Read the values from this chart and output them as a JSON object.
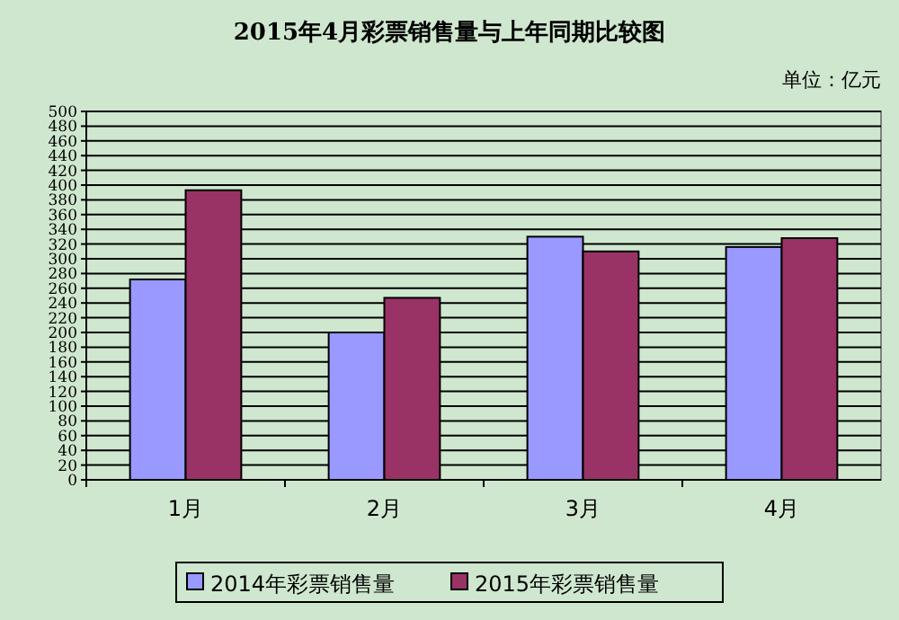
{
  "chart_data": {
    "type": "bar",
    "title": "2015年4月彩票销售量与上年同期比较图",
    "annotations": [
      "单位：亿元"
    ],
    "categories": [
      "1月",
      "2月",
      "3月",
      "4月"
    ],
    "series": [
      {
        "name": "2014年彩票销售量",
        "color": "#9999ff",
        "values": [
          272,
          200,
          330,
          316
        ]
      },
      {
        "name": "2015年彩票销售量",
        "color": "#993366",
        "values": [
          393,
          247,
          310,
          328
        ]
      }
    ],
    "ylim": [
      0,
      500
    ],
    "yticks": [
      0,
      20,
      40,
      60,
      80,
      100,
      120,
      140,
      160,
      180,
      200,
      220,
      240,
      260,
      280,
      300,
      320,
      340,
      360,
      380,
      400,
      420,
      440,
      460,
      480,
      500
    ],
    "grid": "y",
    "legend": "bottom"
  }
}
